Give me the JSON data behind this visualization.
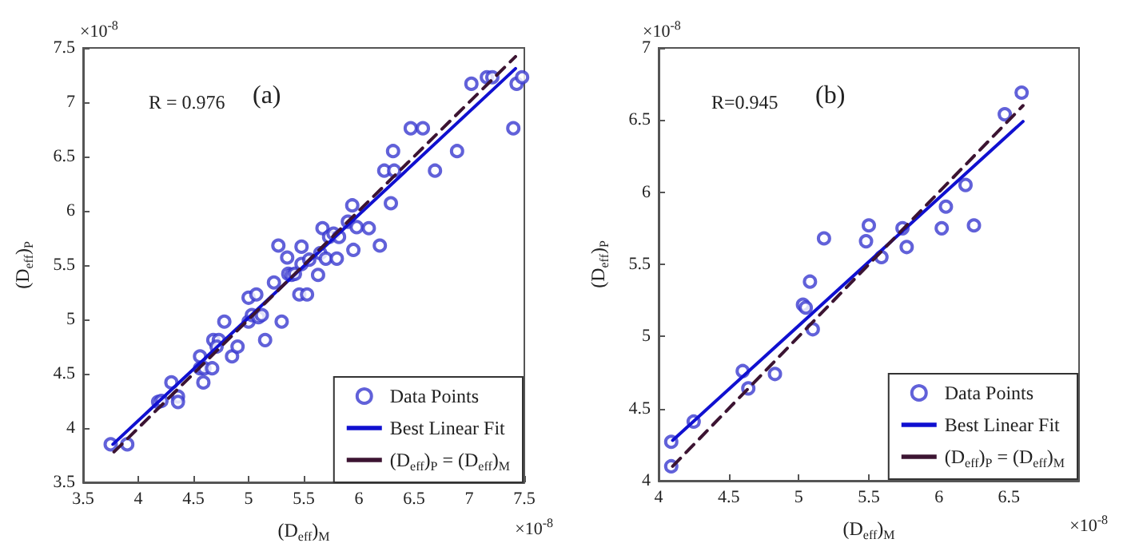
{
  "chart_data": [
    {
      "type": "scatter",
      "xlabel": "(D$_{eff}$)$_{M}$",
      "ylabel": "(D$_{eff}$)$_{P}$",
      "annotations": [
        "R = 0.976",
        "(a)",
        "×10$^{-8}$",
        "×10$^{-8}$"
      ],
      "xlim": [
        3.5,
        7.5
      ],
      "ylim": [
        3.5,
        7.5
      ],
      "xticks": [
        3.5,
        4,
        4.5,
        5,
        5.5,
        6,
        6.5,
        7,
        7.5
      ],
      "yticks": [
        3.5,
        4,
        4.5,
        5,
        5.5,
        6,
        6.5,
        7,
        7.5
      ],
      "grid": false,
      "legend": "bottom right",
      "series": [
        {
          "name": "Data Points",
          "marker": "circle",
          "color": "#3a3ad0",
          "x": [
            3.75,
            3.9,
            4.18,
            4.21,
            4.3,
            4.36,
            4.36,
            4.56,
            4.56,
            4.6,
            4.59,
            4.67,
            4.68,
            4.73,
            4.71,
            4.78,
            4.85,
            4.9,
            5.0,
            5.07,
            5.0,
            5.03,
            5.09,
            5.12,
            5.15,
            5.27,
            5.23,
            5.3,
            5.35,
            5.36,
            5.39,
            5.42,
            5.46,
            5.48,
            5.48,
            5.53,
            5.55,
            5.63,
            5.65,
            5.67,
            5.7,
            5.73,
            5.77,
            5.8,
            5.82,
            5.9,
            5.94,
            5.95,
            5.98,
            6.09,
            6.19,
            6.23,
            6.29,
            6.31,
            6.32,
            6.47,
            6.58,
            6.69,
            6.89,
            7.02,
            7.16,
            7.21,
            7.4,
            7.43,
            7.48
          ],
          "values": [
            3.85,
            3.85,
            4.24,
            4.25,
            4.42,
            4.29,
            4.24,
            4.66,
            4.55,
            4.55,
            4.42,
            4.55,
            4.81,
            4.81,
            4.75,
            4.98,
            4.66,
            4.75,
            5.2,
            5.23,
            4.98,
            5.04,
            5.02,
            5.04,
            4.81,
            5.68,
            5.34,
            4.98,
            5.57,
            5.42,
            5.41,
            5.42,
            5.23,
            5.67,
            5.51,
            5.23,
            5.55,
            5.41,
            5.61,
            5.84,
            5.56,
            5.76,
            5.79,
            5.56,
            5.76,
            5.9,
            6.05,
            5.64,
            5.85,
            5.84,
            5.68,
            6.37,
            6.07,
            6.55,
            6.37,
            6.76,
            6.76,
            6.37,
            6.55,
            7.17,
            7.23,
            7.23,
            6.76,
            7.17,
            7.23
          ]
        },
        {
          "name": "Best Linear Fit",
          "type": "line",
          "marker": "none",
          "color": "#1010d0",
          "line_style": "solid",
          "x": [
            3.77,
            7.42
          ],
          "values": [
            3.85,
            7.31
          ]
        },
        {
          "name": "(D$_{eff}$)$_{P}$ = (D$_{eff}$)$_{M}$",
          "type": "line",
          "marker": "none",
          "color": "#3c1432",
          "line_style": "dashed",
          "x": [
            3.78,
            7.42
          ],
          "values": [
            3.78,
            7.42
          ]
        }
      ]
    },
    {
      "type": "scatter",
      "xlabel": "(D$_{eff}$)$_{M}$",
      "ylabel": "(D$_{eff}$)$_{P}$",
      "annotations": [
        "R=0.945",
        "(b)",
        "×10$^{-8}$",
        "×10$^{-8}$"
      ],
      "xlim": [
        4,
        7
      ],
      "ylim": [
        4,
        7
      ],
      "xticks": [
        4,
        4.5,
        5,
        5.5,
        6,
        6.5
      ],
      "yticks": [
        4,
        4.5,
        5,
        5.5,
        6,
        6.5,
        7
      ],
      "grid": false,
      "legend": "bottom right",
      "series": [
        {
          "name": "Data Points",
          "marker": "circle",
          "color": "#3a3ad0",
          "x": [
            4.09,
            4.09,
            4.25,
            4.6,
            4.64,
            4.83,
            5.03,
            5.05,
            5.08,
            5.1,
            5.18,
            5.48,
            5.5,
            5.59,
            5.74,
            5.77,
            6.02,
            6.05,
            6.19,
            6.25,
            6.47,
            6.59
          ],
          "values": [
            4.27,
            4.1,
            4.41,
            4.76,
            4.64,
            4.74,
            5.22,
            5.2,
            5.38,
            5.05,
            5.68,
            5.66,
            5.77,
            5.55,
            5.75,
            5.62,
            5.75,
            5.9,
            6.05,
            5.77,
            6.54,
            6.69
          ]
        },
        {
          "name": "Best Linear Fit",
          "type": "line",
          "marker": "none",
          "color": "#1010d0",
          "line_style": "solid",
          "x": [
            4.1,
            6.6
          ],
          "values": [
            4.28,
            6.49
          ]
        },
        {
          "name": "(D$_{eff}$)$_{P}$ = (D$_{eff}$)$_{M}$",
          "type": "line",
          "marker": "none",
          "color": "#3c1432",
          "line_style": "dashed",
          "x": [
            4.1,
            6.6
          ],
          "values": [
            4.1,
            6.6
          ]
        }
      ]
    }
  ]
}
